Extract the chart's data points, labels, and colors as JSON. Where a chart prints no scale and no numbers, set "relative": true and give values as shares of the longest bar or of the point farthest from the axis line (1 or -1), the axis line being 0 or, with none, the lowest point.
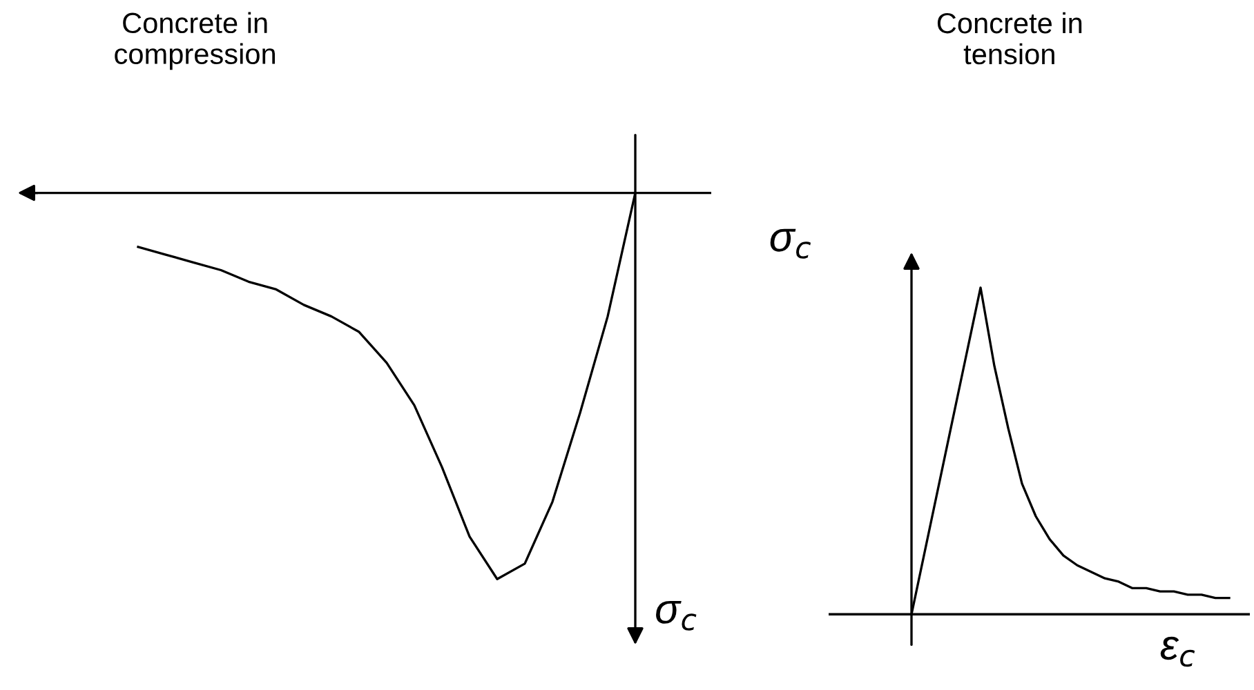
{
  "chart_data": [
    {
      "type": "line",
      "title": "Concrete in\ncompression",
      "ylabel": "σ$_{c}$",
      "relative": true,
      "color": "#000000",
      "categories": [
        null,
        null,
        null,
        null,
        null,
        null,
        null,
        null,
        null,
        null,
        null,
        null,
        null,
        null,
        null,
        null,
        null,
        null,
        null
      ],
      "values": [
        -0.14,
        -0.16,
        -0.18,
        -0.2,
        -0.23,
        -0.25,
        -0.29,
        -0.32,
        -0.36,
        -0.44,
        -0.55,
        -0.71,
        -0.89,
        -1,
        -0.96,
        -0.8,
        -0.57,
        -0.32,
        0
      ]
    },
    {
      "type": "line",
      "title": "Concrete in\ntension",
      "ylabel": "σ$_{c}$",
      "xlabel": "ε$_{c}$",
      "relative": true,
      "color": "#000000",
      "categories": [
        null,
        null,
        null,
        null,
        null,
        null,
        null,
        null,
        null,
        null,
        null,
        null,
        null,
        null,
        null,
        null,
        null,
        null,
        null,
        null,
        null,
        null,
        null,
        null
      ],
      "values": [
        0,
        0.2,
        0.4,
        0.6,
        0.8,
        1,
        0.76,
        0.57,
        0.4,
        0.3,
        0.23,
        0.18,
        0.15,
        0.13,
        0.11,
        0.1,
        0.08,
        0.08,
        0.07,
        0.07,
        0.06,
        0.06,
        0.05,
        0.05
      ]
    }
  ]
}
